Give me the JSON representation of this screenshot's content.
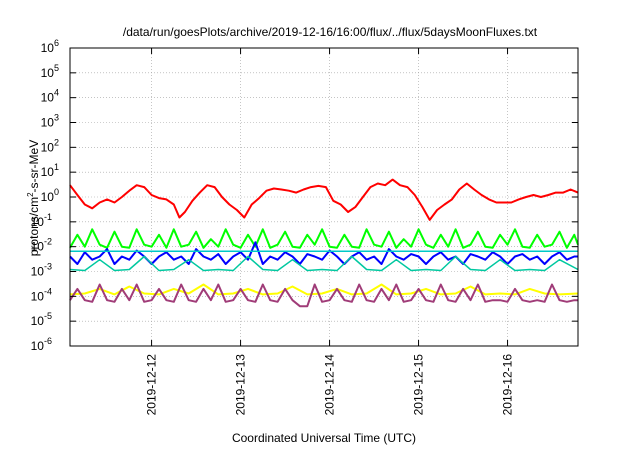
{
  "chart_data": {
    "type": "line",
    "title": "/data/run/goesPlots/archive/2019-12-16/16:00/flux/../flux/5daysMoonFluxes.txt",
    "xlabel": "Coordinated Universal Time (UTC)",
    "ylabel": "protons/cm²-s-sr-MeV",
    "y_scale": "log",
    "ylim": [
      1e-06,
      1000000.0
    ],
    "xlim": [
      "2019-12-11T02:00",
      "2019-12-16T19:00"
    ],
    "grid": true,
    "legend": "none",
    "x_ticks": [
      "2019-12-12",
      "2019-12-13",
      "2019-12-14",
      "2019-12-15",
      "2019-12-16"
    ],
    "y_ticks": [
      {
        "base": "10",
        "exp": "-6"
      },
      {
        "base": "10",
        "exp": "-5"
      },
      {
        "base": "10",
        "exp": "-4"
      },
      {
        "base": "10",
        "exp": "-3"
      },
      {
        "base": "10",
        "exp": "-2"
      },
      {
        "base": "10",
        "exp": "-1"
      },
      {
        "base": "10",
        "exp": "0"
      },
      {
        "base": "10",
        "exp": "1"
      },
      {
        "base": "10",
        "exp": "2"
      },
      {
        "base": "10",
        "exp": "3"
      },
      {
        "base": "10",
        "exp": "4"
      },
      {
        "base": "10",
        "exp": "5"
      },
      {
        "base": "10",
        "exp": "6"
      }
    ],
    "series": [
      {
        "color": "#ff0000",
        "width": 2,
        "x": [
          "2019-12-11T02:00",
          "2019-12-11T04:00",
          "2019-12-11T06:00",
          "2019-12-11T08:00",
          "2019-12-11T10:00",
          "2019-12-11T12:00",
          "2019-12-11T14:00",
          "2019-12-11T16:00",
          "2019-12-11T18:00",
          "2019-12-11T20:00",
          "2019-12-11T22:00",
          "2019-12-12T00:00",
          "2019-12-12T02:00",
          "2019-12-12T04:00",
          "2019-12-12T06:00",
          "2019-12-12T07:30",
          "2019-12-12T09:00",
          "2019-12-12T11:00",
          "2019-12-12T13:00",
          "2019-12-12T15:00",
          "2019-12-12T17:00",
          "2019-12-12T19:00",
          "2019-12-12T21:00",
          "2019-12-12T23:00",
          "2019-12-13T01:00",
          "2019-12-13T03:00",
          "2019-12-13T05:00",
          "2019-12-13T07:00",
          "2019-12-13T09:00",
          "2019-12-13T11:00",
          "2019-12-13T13:00",
          "2019-12-13T15:00",
          "2019-12-13T17:00",
          "2019-12-13T19:00",
          "2019-12-13T21:00",
          "2019-12-13T23:00",
          "2019-12-14T01:00",
          "2019-12-14T03:00",
          "2019-12-14T05:00",
          "2019-12-14T07:00",
          "2019-12-14T09:00",
          "2019-12-14T11:00",
          "2019-12-14T13:00",
          "2019-12-14T15:00",
          "2019-12-14T17:00",
          "2019-12-14T19:00",
          "2019-12-14T21:00",
          "2019-12-14T23:00",
          "2019-12-15T01:00",
          "2019-12-15T03:00",
          "2019-12-15T05:00",
          "2019-12-15T07:00",
          "2019-12-15T09:00",
          "2019-12-15T11:00",
          "2019-12-15T13:00",
          "2019-12-15T15:00",
          "2019-12-15T17:00",
          "2019-12-15T19:00",
          "2019-12-15T21:00",
          "2019-12-15T23:00",
          "2019-12-16T01:00",
          "2019-12-16T03:00",
          "2019-12-16T05:00",
          "2019-12-16T07:00",
          "2019-12-16T09:00",
          "2019-12-16T11:00",
          "2019-12-16T13:00",
          "2019-12-16T15:00",
          "2019-12-16T17:00",
          "2019-12-16T19:00"
        ],
        "y": [
          3.0,
          1.2,
          0.5,
          0.35,
          0.6,
          0.8,
          0.6,
          1.0,
          1.8,
          3.0,
          2.5,
          1.2,
          0.9,
          0.8,
          0.5,
          0.15,
          0.25,
          0.7,
          1.5,
          3.0,
          2.5,
          1.0,
          0.5,
          0.3,
          0.15,
          0.5,
          0.9,
          1.8,
          2.2,
          2.0,
          1.8,
          1.5,
          2.0,
          2.5,
          2.8,
          2.5,
          0.7,
          0.5,
          0.25,
          0.4,
          1.0,
          2.5,
          3.5,
          3.0,
          5.0,
          3.0,
          2.5,
          1.2,
          0.4,
          0.12,
          0.3,
          0.5,
          0.8,
          2.0,
          3.5,
          2.0,
          1.2,
          0.8,
          0.6,
          0.6,
          0.6,
          0.8,
          1.0,
          1.2,
          1.0,
          1.2,
          1.5,
          1.5,
          2.0,
          1.5
        ]
      },
      {
        "color": "#00ff00",
        "width": 2,
        "x": [
          "2019-12-11T02:00",
          "2019-12-11T04:00",
          "2019-12-11T06:00",
          "2019-12-11T08:00",
          "2019-12-11T10:00",
          "2019-12-11T12:00",
          "2019-12-11T14:00",
          "2019-12-11T16:00",
          "2019-12-11T18:00",
          "2019-12-11T20:00",
          "2019-12-11T22:00",
          "2019-12-12T00:00",
          "2019-12-12T02:00",
          "2019-12-12T04:00",
          "2019-12-12T06:00",
          "2019-12-12T08:00",
          "2019-12-12T10:00",
          "2019-12-12T12:00",
          "2019-12-12T14:00",
          "2019-12-12T16:00",
          "2019-12-12T18:00",
          "2019-12-12T20:00",
          "2019-12-12T22:00",
          "2019-12-13T00:00",
          "2019-12-13T02:00",
          "2019-12-13T04:00",
          "2019-12-13T06:00",
          "2019-12-13T08:00",
          "2019-12-13T10:00",
          "2019-12-13T12:00",
          "2019-12-13T14:00",
          "2019-12-13T16:00",
          "2019-12-13T18:00",
          "2019-12-13T20:00",
          "2019-12-13T22:00",
          "2019-12-14T00:00",
          "2019-12-14T02:00",
          "2019-12-14T04:00",
          "2019-12-14T06:00",
          "2019-12-14T08:00",
          "2019-12-14T10:00",
          "2019-12-14T12:00",
          "2019-12-14T14:00",
          "2019-12-14T16:00",
          "2019-12-14T18:00",
          "2019-12-14T20:00",
          "2019-12-14T22:00",
          "2019-12-15T00:00",
          "2019-12-15T02:00",
          "2019-12-15T04:00",
          "2019-12-15T06:00",
          "2019-12-15T08:00",
          "2019-12-15T10:00",
          "2019-12-15T12:00",
          "2019-12-15T14:00",
          "2019-12-15T16:00",
          "2019-12-15T18:00",
          "2019-12-15T20:00",
          "2019-12-15T22:00",
          "2019-12-16T00:00",
          "2019-12-16T02:00",
          "2019-12-16T04:00",
          "2019-12-16T06:00",
          "2019-12-16T08:00",
          "2019-12-16T10:00",
          "2019-12-16T12:00",
          "2019-12-16T14:00",
          "2019-12-16T16:00",
          "2019-12-16T18:00",
          "2019-12-16T19:00"
        ],
        "y": [
          0.009,
          0.03,
          0.01,
          0.05,
          0.012,
          0.009,
          0.04,
          0.01,
          0.009,
          0.05,
          0.012,
          0.01,
          0.03,
          0.009,
          0.05,
          0.01,
          0.012,
          0.04,
          0.009,
          0.02,
          0.01,
          0.05,
          0.012,
          0.009,
          0.03,
          0.01,
          0.05,
          0.009,
          0.012,
          0.04,
          0.01,
          0.009,
          0.03,
          0.012,
          0.05,
          0.01,
          0.009,
          0.03,
          0.01,
          0.009,
          0.05,
          0.012,
          0.01,
          0.04,
          0.009,
          0.02,
          0.01,
          0.05,
          0.012,
          0.009,
          0.03,
          0.01,
          0.05,
          0.009,
          0.012,
          0.04,
          0.01,
          0.009,
          0.03,
          0.012,
          0.05,
          0.01,
          0.009,
          0.03,
          0.01,
          0.012,
          0.04,
          0.009,
          0.03,
          0.012
        ]
      },
      {
        "color": "#0000ff",
        "width": 2,
        "x": [
          "2019-12-11T02:00",
          "2019-12-11T04:00",
          "2019-12-11T06:00",
          "2019-12-11T08:00",
          "2019-12-11T10:00",
          "2019-12-11T12:00",
          "2019-12-11T14:00",
          "2019-12-11T16:00",
          "2019-12-11T18:00",
          "2019-12-11T20:00",
          "2019-12-11T22:00",
          "2019-12-12T00:00",
          "2019-12-12T02:00",
          "2019-12-12T04:00",
          "2019-12-12T06:00",
          "2019-12-12T08:00",
          "2019-12-12T10:00",
          "2019-12-12T12:00",
          "2019-12-12T14:00",
          "2019-12-12T16:00",
          "2019-12-12T18:00",
          "2019-12-12T20:00",
          "2019-12-12T22:00",
          "2019-12-13T00:00",
          "2019-12-13T02:00",
          "2019-12-13T04:00",
          "2019-12-13T06:00",
          "2019-12-13T08:00",
          "2019-12-13T10:00",
          "2019-12-13T12:00",
          "2019-12-13T14:00",
          "2019-12-13T16:00",
          "2019-12-13T18:00",
          "2019-12-13T20:00",
          "2019-12-13T22:00",
          "2019-12-14T00:00",
          "2019-12-14T02:00",
          "2019-12-14T04:00",
          "2019-12-14T06:00",
          "2019-12-14T08:00",
          "2019-12-14T10:00",
          "2019-12-14T12:00",
          "2019-12-14T14:00",
          "2019-12-14T16:00",
          "2019-12-14T18:00",
          "2019-12-14T20:00",
          "2019-12-14T22:00",
          "2019-12-15T00:00",
          "2019-12-15T02:00",
          "2019-12-15T04:00",
          "2019-12-15T06:00",
          "2019-12-15T08:00",
          "2019-12-15T10:00",
          "2019-12-15T12:00",
          "2019-12-15T14:00",
          "2019-12-15T16:00",
          "2019-12-15T18:00",
          "2019-12-15T20:00",
          "2019-12-15T22:00",
          "2019-12-16T00:00",
          "2019-12-16T02:00",
          "2019-12-16T04:00",
          "2019-12-16T06:00",
          "2019-12-16T08:00",
          "2019-12-16T10:00",
          "2019-12-16T12:00",
          "2019-12-16T14:00",
          "2019-12-16T16:00",
          "2019-12-16T18:00",
          "2019-12-16T19:00"
        ],
        "y": [
          0.004,
          0.002,
          0.006,
          0.003,
          0.004,
          0.008,
          0.002,
          0.004,
          0.003,
          0.007,
          0.004,
          0.002,
          0.004,
          0.006,
          0.003,
          0.004,
          0.002,
          0.008,
          0.004,
          0.003,
          0.005,
          0.002,
          0.004,
          0.006,
          0.003,
          0.015,
          0.002,
          0.004,
          0.003,
          0.006,
          0.004,
          0.002,
          0.005,
          0.004,
          0.003,
          0.007,
          0.004,
          0.002,
          0.004,
          0.006,
          0.003,
          0.004,
          0.002,
          0.008,
          0.004,
          0.003,
          0.005,
          0.004,
          0.002,
          0.004,
          0.006,
          0.003,
          0.004,
          0.002,
          0.005,
          0.004,
          0.003,
          0.006,
          0.004,
          0.002,
          0.004,
          0.005,
          0.003,
          0.004,
          0.002,
          0.004,
          0.006,
          0.003,
          0.004,
          0.004
        ]
      },
      {
        "color": "#00c8c8",
        "width": 1.5,
        "x": [
          "2019-12-11T02:00",
          "2019-12-12T00:00",
          "2019-12-13T00:00",
          "2019-12-14T00:00",
          "2019-12-15T00:00",
          "2019-12-16T00:00",
          "2019-12-16T19:00"
        ],
        "y": [
          0.0065,
          0.0065,
          0.0065,
          0.0065,
          0.0065,
          0.0065,
          0.0065
        ]
      },
      {
        "color": "#00c8a0",
        "width": 1.5,
        "x": [
          "2019-12-11T02:00",
          "2019-12-11T06:00",
          "2019-12-11T10:00",
          "2019-12-11T14:00",
          "2019-12-11T18:00",
          "2019-12-11T22:00",
          "2019-12-12T02:00",
          "2019-12-12T06:00",
          "2019-12-12T10:00",
          "2019-12-12T14:00",
          "2019-12-12T18:00",
          "2019-12-12T22:00",
          "2019-12-13T02:00",
          "2019-12-13T06:00",
          "2019-12-13T10:00",
          "2019-12-13T14:00",
          "2019-12-13T18:00",
          "2019-12-13T22:00",
          "2019-12-14T02:00",
          "2019-12-14T06:00",
          "2019-12-14T10:00",
          "2019-12-14T14:00",
          "2019-12-14T18:00",
          "2019-12-14T22:00",
          "2019-12-15T02:00",
          "2019-12-15T06:00",
          "2019-12-15T10:00",
          "2019-12-15T14:00",
          "2019-12-15T18:00",
          "2019-12-15T22:00",
          "2019-12-16T02:00",
          "2019-12-16T06:00",
          "2019-12-16T10:00",
          "2019-12-16T14:00",
          "2019-12-16T19:00"
        ],
        "y": [
          0.0012,
          0.0011,
          0.003,
          0.0011,
          0.0012,
          0.004,
          0.0011,
          0.0012,
          0.003,
          0.0011,
          0.0012,
          0.0011,
          0.004,
          0.0012,
          0.0011,
          0.003,
          0.0011,
          0.0012,
          0.0011,
          0.004,
          0.0012,
          0.0011,
          0.003,
          0.0011,
          0.0012,
          0.0011,
          0.004,
          0.0012,
          0.0011,
          0.003,
          0.0011,
          0.0012,
          0.0011,
          0.003,
          0.0012
        ]
      },
      {
        "color": "#ffff00",
        "width": 2,
        "x": [
          "2019-12-11T02:00",
          "2019-12-11T06:00",
          "2019-12-11T10:00",
          "2019-12-11T14:00",
          "2019-12-11T18:00",
          "2019-12-11T22:00",
          "2019-12-12T02:00",
          "2019-12-12T06:00",
          "2019-12-12T10:00",
          "2019-12-12T14:00",
          "2019-12-12T18:00",
          "2019-12-12T22:00",
          "2019-12-13T02:00",
          "2019-12-13T06:00",
          "2019-12-13T10:00",
          "2019-12-13T14:00",
          "2019-12-13T18:00",
          "2019-12-13T22:00",
          "2019-12-14T02:00",
          "2019-12-14T06:00",
          "2019-12-14T10:00",
          "2019-12-14T14:00",
          "2019-12-14T18:00",
          "2019-12-14T22:00",
          "2019-12-15T02:00",
          "2019-12-15T06:00",
          "2019-12-15T10:00",
          "2019-12-15T14:00",
          "2019-12-15T18:00",
          "2019-12-15T22:00",
          "2019-12-16T02:00",
          "2019-12-16T06:00",
          "2019-12-16T10:00",
          "2019-12-16T14:00",
          "2019-12-16T19:00"
        ],
        "y": [
          0.00012,
          0.00013,
          0.0002,
          0.00012,
          0.00025,
          0.00013,
          0.00012,
          0.0002,
          0.00013,
          0.0003,
          0.00012,
          0.00013,
          0.0002,
          0.00012,
          0.00013,
          0.00025,
          0.00012,
          0.00013,
          0.0002,
          0.00012,
          0.00013,
          0.0003,
          0.00012,
          0.00013,
          0.0002,
          0.00012,
          0.00013,
          0.00025,
          0.00012,
          0.00013,
          0.00012,
          0.0002,
          0.00013,
          0.00012,
          0.00013
        ]
      },
      {
        "color": "#a03c78",
        "width": 2,
        "x": [
          "2019-12-11T02:00",
          "2019-12-11T04:00",
          "2019-12-11T06:00",
          "2019-12-11T08:00",
          "2019-12-11T10:00",
          "2019-12-11T12:00",
          "2019-12-11T14:00",
          "2019-12-11T16:00",
          "2019-12-11T18:00",
          "2019-12-11T20:00",
          "2019-12-11T22:00",
          "2019-12-12T00:00",
          "2019-12-12T02:00",
          "2019-12-12T04:00",
          "2019-12-12T06:00",
          "2019-12-12T08:00",
          "2019-12-12T10:00",
          "2019-12-12T12:00",
          "2019-12-12T14:00",
          "2019-12-12T16:00",
          "2019-12-12T18:00",
          "2019-12-12T20:00",
          "2019-12-12T22:00",
          "2019-12-13T00:00",
          "2019-12-13T02:00",
          "2019-12-13T04:00",
          "2019-12-13T06:00",
          "2019-12-13T08:00",
          "2019-12-13T10:00",
          "2019-12-13T12:00",
          "2019-12-13T14:00",
          "2019-12-13T16:00",
          "2019-12-13T18:00",
          "2019-12-13T20:00",
          "2019-12-13T22:00",
          "2019-12-14T00:00",
          "2019-12-14T02:00",
          "2019-12-14T04:00",
          "2019-12-14T06:00",
          "2019-12-14T08:00",
          "2019-12-14T10:00",
          "2019-12-14T12:00",
          "2019-12-14T14:00",
          "2019-12-14T16:00",
          "2019-12-14T18:00",
          "2019-12-14T20:00",
          "2019-12-14T22:00",
          "2019-12-15T00:00",
          "2019-12-15T02:00",
          "2019-12-15T04:00",
          "2019-12-15T06:00",
          "2019-12-15T08:00",
          "2019-12-15T10:00",
          "2019-12-15T12:00",
          "2019-12-15T14:00",
          "2019-12-15T16:00",
          "2019-12-15T18:00",
          "2019-12-15T20:00",
          "2019-12-15T22:00",
          "2019-12-16T00:00",
          "2019-12-16T02:00",
          "2019-12-16T04:00",
          "2019-12-16T06:00",
          "2019-12-16T08:00",
          "2019-12-16T10:00",
          "2019-12-16T12:00",
          "2019-12-16T14:00",
          "2019-12-16T16:00",
          "2019-12-16T18:00",
          "2019-12-16T19:00"
        ],
        "y": [
          7e-05,
          0.0002,
          7e-05,
          6e-05,
          0.0003,
          7e-05,
          6e-05,
          0.0002,
          7e-05,
          0.0003,
          6e-05,
          7e-05,
          0.0002,
          7e-05,
          6e-05,
          0.0003,
          7e-05,
          6e-05,
          0.0002,
          7e-05,
          0.0003,
          6e-05,
          7e-05,
          0.0002,
          7e-05,
          6e-05,
          0.0003,
          7e-05,
          6e-05,
          0.0002,
          7e-05,
          4e-05,
          4e-05,
          0.0003,
          6e-05,
          7e-05,
          0.0002,
          7e-05,
          6e-05,
          0.0003,
          7e-05,
          6e-05,
          0.0002,
          7e-05,
          0.0003,
          6e-05,
          7e-05,
          0.0002,
          7e-05,
          6e-05,
          0.0003,
          7e-05,
          6e-05,
          0.0002,
          7e-05,
          0.0003,
          6e-05,
          7e-05,
          7e-05,
          6e-05,
          0.0002,
          7e-05,
          6e-05,
          7e-05,
          6e-05,
          0.0003,
          7e-05,
          6e-05,
          7e-05,
          7e-05
        ]
      }
    ]
  }
}
